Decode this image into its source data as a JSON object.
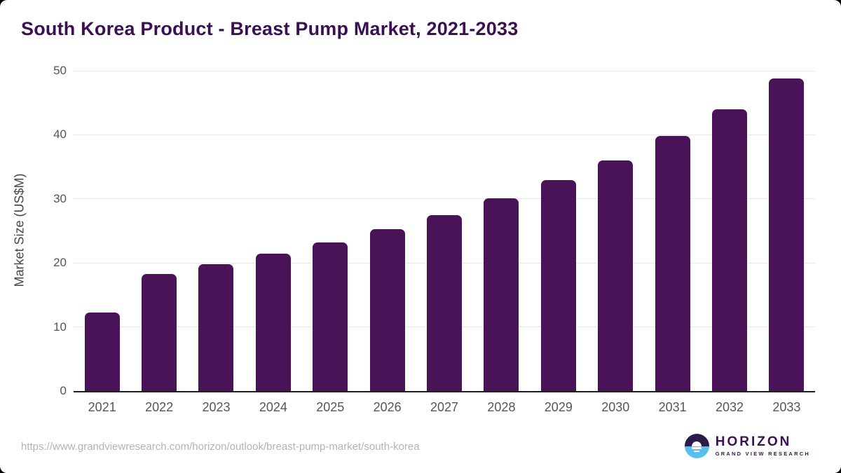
{
  "title": "South Korea Product - Breast Pump Market, 2021-2033",
  "chart_data": {
    "type": "bar",
    "title": "South Korea Product - Breast Pump Market, 2021-2033",
    "categories": [
      "2021",
      "2022",
      "2023",
      "2024",
      "2025",
      "2026",
      "2027",
      "2028",
      "2029",
      "2030",
      "2031",
      "2032",
      "2033"
    ],
    "values": [
      12.3,
      18.3,
      19.8,
      21.4,
      23.2,
      25.3,
      27.5,
      30.1,
      32.9,
      36.0,
      39.8,
      44.0,
      48.8
    ],
    "xlabel": "",
    "ylabel": "Market Size (US$M)",
    "ylim": [
      0,
      50
    ],
    "yticks": [
      0,
      10,
      20,
      30,
      40,
      50
    ],
    "grid": "horizontal",
    "legend": "none",
    "bar_color": "#4b1357"
  },
  "footer": {
    "source_url": "https://www.grandviewresearch.com/horizon/outlook/breast-pump-market/south-korea",
    "logo": {
      "name": "HORIZON",
      "subtitle": "GRAND VIEW RESEARCH"
    }
  },
  "colors": {
    "bar": "#4b1357",
    "title_text": "#3a1052",
    "axis_text": "#555555",
    "gridline": "#e7e7e7",
    "axis_line": "#1f1f1f",
    "url_text": "#b3b3b3",
    "logo_dark": "#2d1b4a",
    "logo_blue": "#56c1ef"
  }
}
